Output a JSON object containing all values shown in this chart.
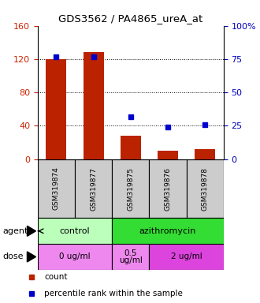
{
  "title": "GDS3562 / PA4865_ureA_at",
  "samples": [
    "GSM319874",
    "GSM319877",
    "GSM319875",
    "GSM319876",
    "GSM319878"
  ],
  "counts": [
    120,
    128,
    28,
    10,
    12
  ],
  "percentiles": [
    77,
    77,
    32,
    24,
    26
  ],
  "ylim_left": [
    0,
    160
  ],
  "ylim_right": [
    0,
    100
  ],
  "yticks_left": [
    0,
    40,
    80,
    120,
    160
  ],
  "yticks_right": [
    0,
    25,
    50,
    75,
    100
  ],
  "bar_color": "#bb2200",
  "dot_color": "#0000cc",
  "agent_labels": [
    {
      "text": "control",
      "span": [
        0,
        2
      ],
      "color": "#bbffbb"
    },
    {
      "text": "azithromycin",
      "span": [
        2,
        5
      ],
      "color": "#33dd33"
    }
  ],
  "dose_labels": [
    {
      "text": "0 ug/ml",
      "span": [
        0,
        2
      ],
      "color": "#ee88ee"
    },
    {
      "text": "0.5\nug/ml",
      "span": [
        2,
        3
      ],
      "color": "#ee88ee"
    },
    {
      "text": "2 ug/ml",
      "span": [
        3,
        5
      ],
      "color": "#dd44dd"
    }
  ],
  "legend_count_color": "#bb2200",
  "legend_dot_color": "#0000cc",
  "tick_color_left": "#cc2200",
  "tick_color_right": "#0000bb",
  "bg_color": "#ffffff",
  "xlabel_row_bg": "#cccccc",
  "bar_width": 0.55
}
